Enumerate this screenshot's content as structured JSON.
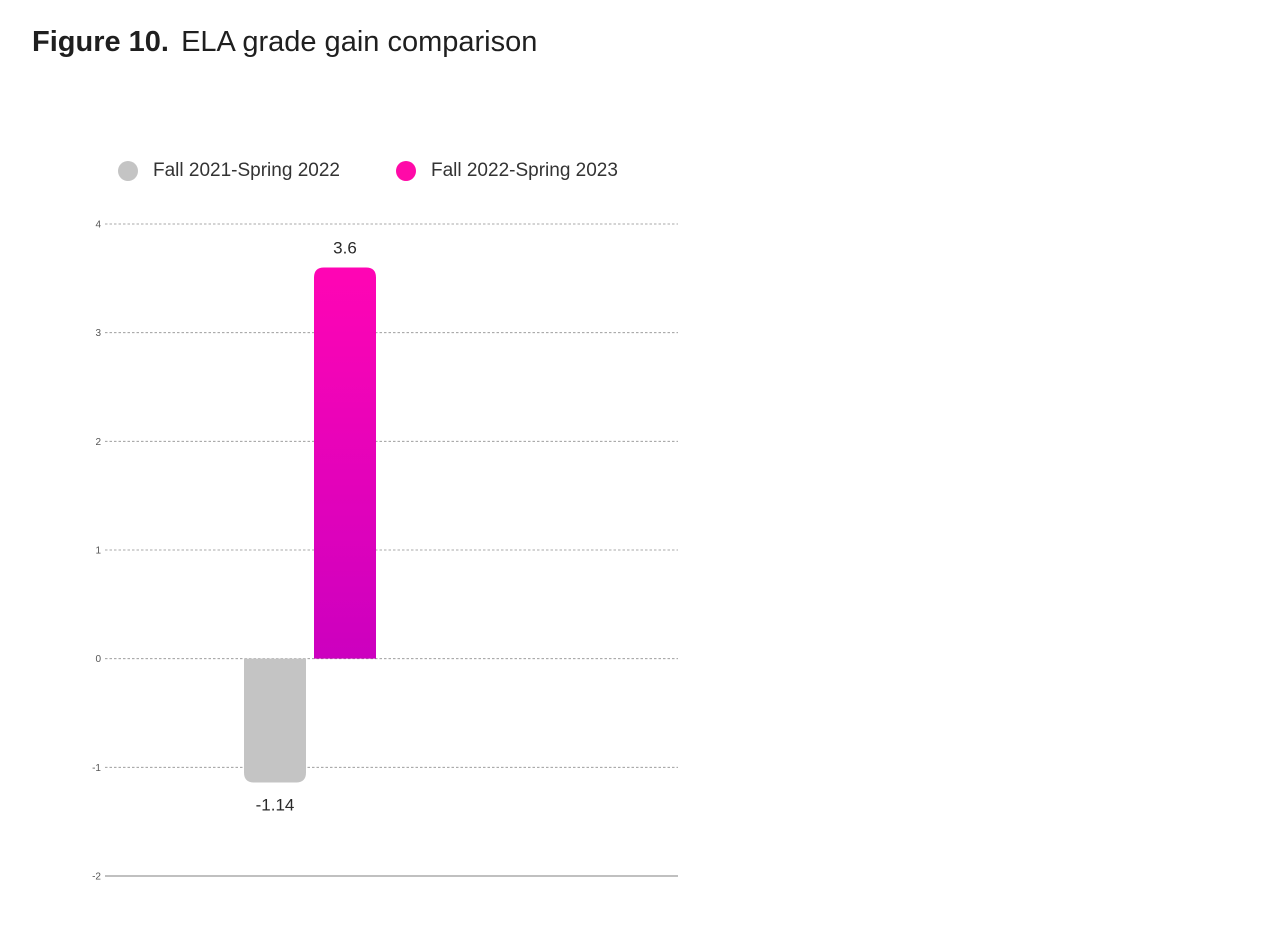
{
  "figure": {
    "label": "Figure 10.",
    "title": "ELA grade gain comparison"
  },
  "legend": [
    {
      "label": "Fall 2021-Spring 2022",
      "color": "#c4c4c4"
    },
    {
      "label": "Fall 2022-Spring 2023",
      "color": "#ff0aa8"
    }
  ],
  "chart_data": {
    "type": "bar",
    "title": "ELA grade gain comparison",
    "categories": [
      ""
    ],
    "series": [
      {
        "name": "Fall 2021-Spring 2022",
        "values": [
          -1.14
        ],
        "color": "#c4c4c4",
        "value_labels": [
          "-1.14"
        ]
      },
      {
        "name": "Fall 2022-Spring 2023",
        "values": [
          3.6
        ],
        "color_top": "#ff05b4",
        "color_bottom": "#cc00bf",
        "value_labels": [
          "3.6"
        ]
      }
    ],
    "xlabel": "",
    "ylabel": "",
    "ylim": [
      -2,
      4
    ],
    "yticks": [
      -2,
      -1,
      0,
      1,
      2,
      3,
      4
    ],
    "ytick_labels": [
      "-2",
      "-1",
      "0",
      "1",
      "2",
      "3",
      "4"
    ],
    "grid": true,
    "legend_position": "top-left"
  }
}
